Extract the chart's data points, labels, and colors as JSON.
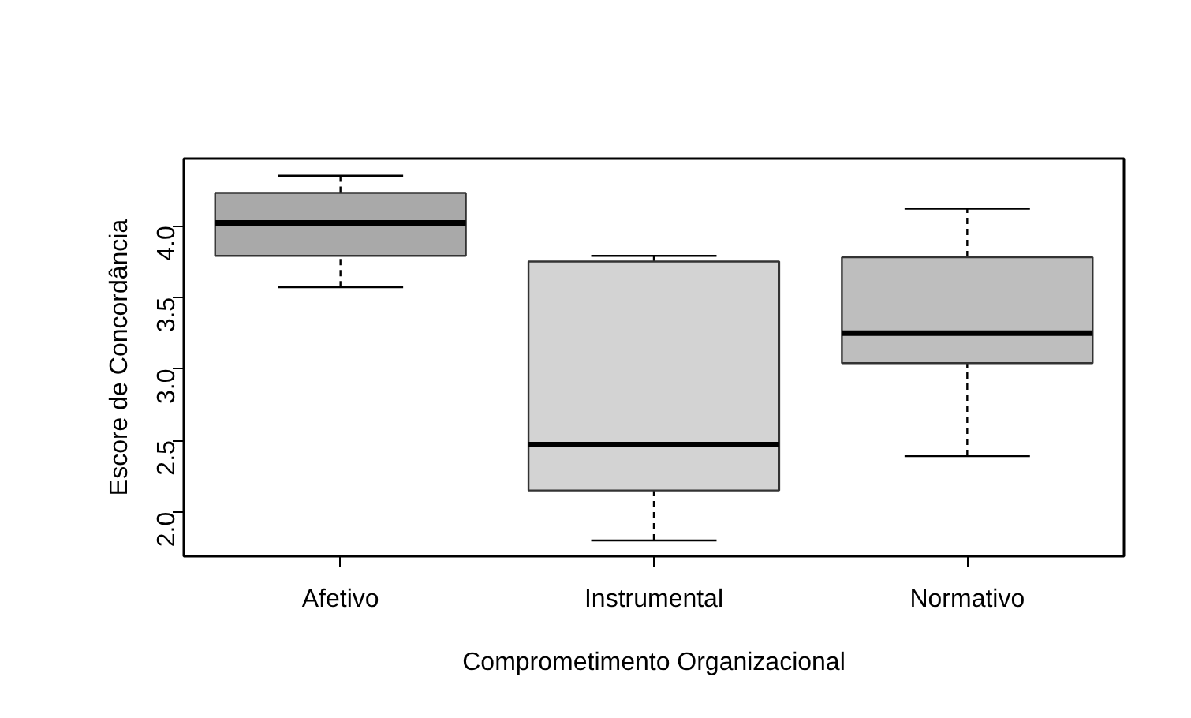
{
  "chart_data": {
    "type": "box",
    "xlabel": "Comprometimento Organizacional",
    "ylabel": "Escore de Concordância",
    "categories": [
      "Afetivo",
      "Instrumental",
      "Normativo"
    ],
    "colors": [
      "#a9a9a9",
      "#d3d3d3",
      "#bebebe"
    ],
    "boxes": [
      {
        "low": 3.57,
        "q1": 3.79,
        "median": 4.02,
        "q3": 4.23,
        "high": 4.35
      },
      {
        "low": 1.8,
        "q1": 2.15,
        "median": 2.47,
        "q3": 3.75,
        "high": 3.79
      },
      {
        "low": 2.39,
        "q1": 3.04,
        "median": 3.25,
        "q3": 3.78,
        "high": 4.12
      }
    ],
    "ylim": [
      1.69,
      4.47
    ],
    "yticks": [
      {
        "value": 2,
        "label": "2.0"
      },
      {
        "value": 2.5,
        "label": "2.5"
      },
      {
        "value": 3,
        "label": "3.0"
      },
      {
        "value": 3.5,
        "label": "3.5"
      },
      {
        "value": 4,
        "label": "4.0"
      }
    ],
    "grid": false
  }
}
